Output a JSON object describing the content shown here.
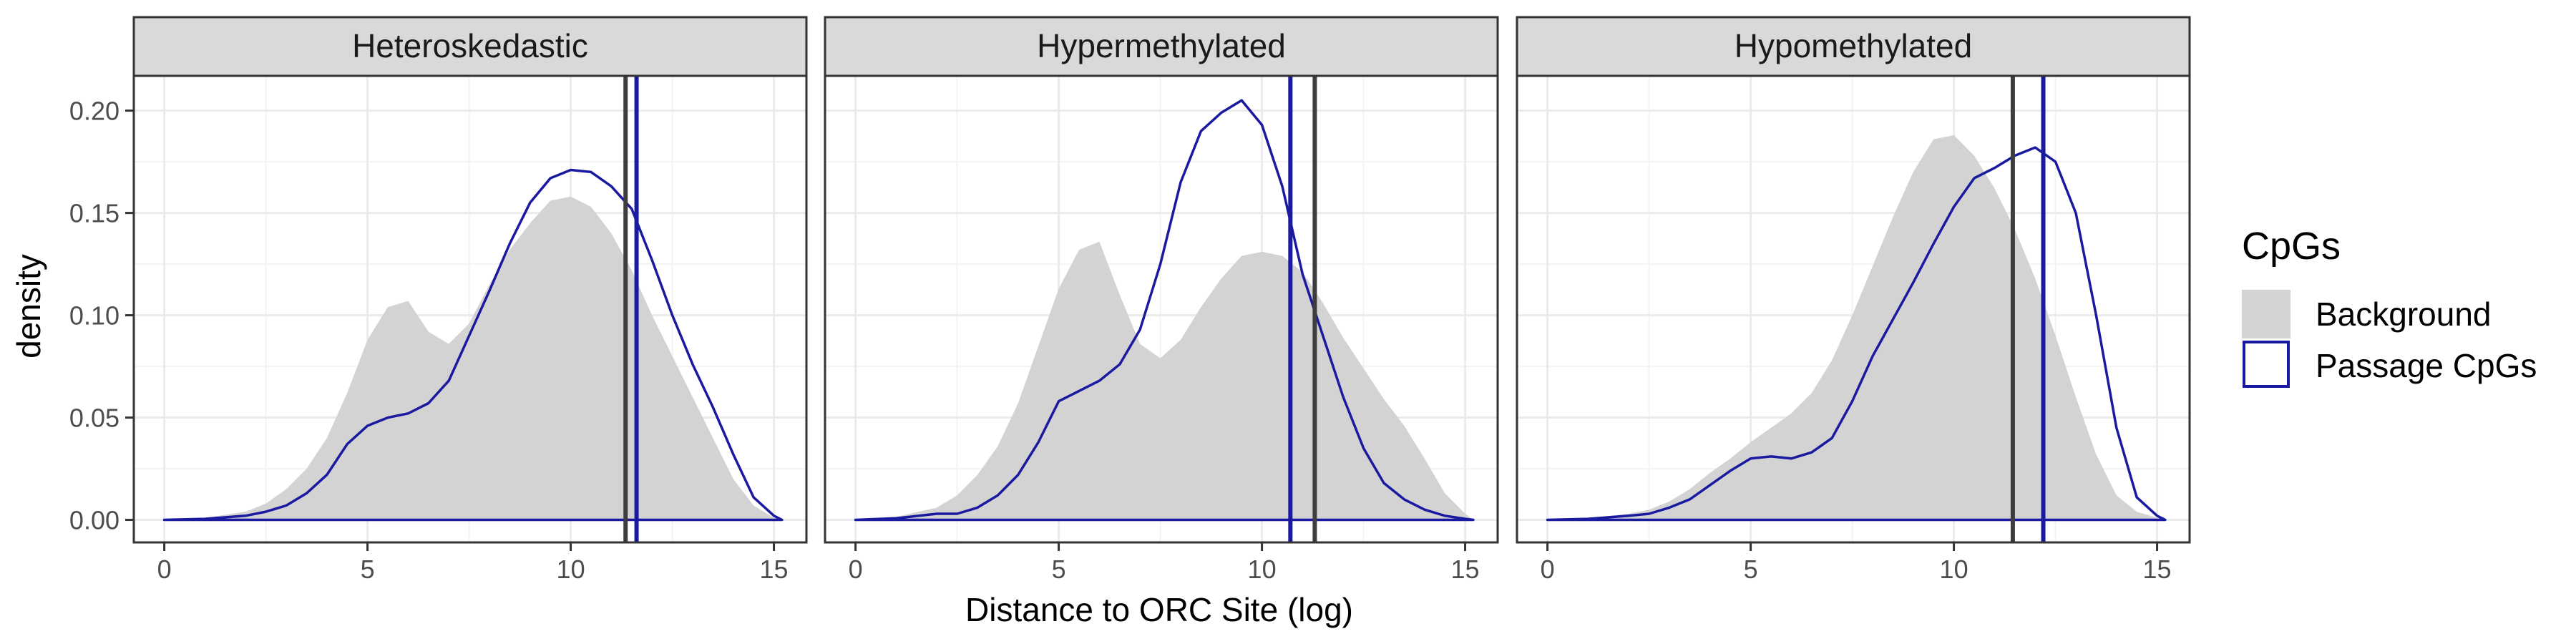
{
  "chart_data": {
    "type": "area",
    "xlabel": "Distance to ORC Site (log)",
    "ylabel": "density",
    "xlim": [
      -0.75,
      15.8
    ],
    "ylim": [
      -0.011,
      0.217
    ],
    "x_ticks": [
      0,
      5,
      10,
      15
    ],
    "x_tick_labels": [
      "0",
      "5",
      "10",
      "15"
    ],
    "y_ticks": [
      0.0,
      0.05,
      0.1,
      0.15,
      0.2
    ],
    "y_tick_labels": [
      "0.00",
      "0.05",
      "0.10",
      "0.15",
      "0.20"
    ],
    "grid": true,
    "legend": {
      "title": "CpGs",
      "position": "right",
      "entries": [
        {
          "label": "Background",
          "fill": "#d3d3d3",
          "stroke": "none"
        },
        {
          "label": "Passage CpGs",
          "fill": "none",
          "stroke": "#1a1aa0"
        }
      ]
    },
    "colors": {
      "background_fill": "#d3d3d3",
      "passage_line": "#1a1aa0",
      "background_mean": "#3d3d3d",
      "strip": "#d9d9d9"
    },
    "panels": [
      {
        "title": "Heteroskedastic",
        "background_mean": 11.35,
        "passage_mean": 11.62,
        "background_series": {
          "name": "Background",
          "x": [
            0,
            1,
            2,
            2.5,
            3,
            3.5,
            4,
            4.5,
            5,
            5.5,
            6,
            6.5,
            7,
            7.5,
            8,
            8.5,
            9,
            9.5,
            10,
            10.5,
            11,
            11.5,
            12,
            12.5,
            13,
            13.5,
            14,
            14.5,
            15,
            15.2
          ],
          "y": [
            0.0,
            0.001,
            0.004,
            0.008,
            0.015,
            0.025,
            0.04,
            0.062,
            0.088,
            0.104,
            0.107,
            0.092,
            0.086,
            0.096,
            0.115,
            0.132,
            0.145,
            0.156,
            0.158,
            0.153,
            0.14,
            0.122,
            0.1,
            0.08,
            0.06,
            0.04,
            0.02,
            0.007,
            0.001,
            0.0
          ]
        },
        "passage_series": {
          "name": "Passage CpGs",
          "x": [
            0,
            1,
            2,
            2.5,
            3,
            3.5,
            4,
            4.5,
            5,
            5.5,
            6,
            6.5,
            7,
            7.5,
            8,
            8.5,
            9,
            9.5,
            10,
            10.5,
            11,
            11.5,
            12,
            12.5,
            13,
            13.5,
            14,
            14.5,
            15,
            15.2
          ],
          "y": [
            0.0,
            0.0005,
            0.002,
            0.004,
            0.007,
            0.013,
            0.022,
            0.037,
            0.046,
            0.05,
            0.052,
            0.057,
            0.068,
            0.09,
            0.112,
            0.135,
            0.155,
            0.167,
            0.171,
            0.17,
            0.163,
            0.152,
            0.127,
            0.1,
            0.076,
            0.055,
            0.032,
            0.011,
            0.002,
            0.0
          ]
        }
      },
      {
        "title": "Hypermethylated",
        "background_mean": 11.3,
        "passage_mean": 10.7,
        "background_series": {
          "name": "Background",
          "x": [
            0,
            1,
            2,
            2.5,
            3,
            3.5,
            4,
            4.5,
            5,
            5.5,
            6,
            6.5,
            7,
            7.5,
            8,
            8.5,
            9,
            9.5,
            10,
            10.5,
            11,
            11.5,
            12,
            12.5,
            13,
            13.5,
            14,
            14.5,
            15,
            15.2
          ],
          "y": [
            0.0,
            0.0015,
            0.006,
            0.012,
            0.022,
            0.036,
            0.057,
            0.085,
            0.113,
            0.132,
            0.136,
            0.11,
            0.086,
            0.079,
            0.088,
            0.104,
            0.118,
            0.129,
            0.131,
            0.129,
            0.121,
            0.106,
            0.089,
            0.074,
            0.059,
            0.046,
            0.03,
            0.013,
            0.003,
            0.0
          ]
        },
        "passage_series": {
          "name": "Passage CpGs",
          "x": [
            0,
            1,
            2,
            2.5,
            3,
            3.5,
            4,
            4.5,
            5,
            5.5,
            6,
            6.5,
            7,
            7.5,
            8,
            8.5,
            9,
            9.5,
            10,
            10.5,
            11,
            11.5,
            12,
            12.5,
            13,
            13.5,
            14,
            14.5,
            15,
            15.2
          ],
          "y": [
            0.0,
            0.0008,
            0.003,
            0.003,
            0.006,
            0.012,
            0.022,
            0.038,
            0.058,
            0.063,
            0.068,
            0.076,
            0.093,
            0.125,
            0.165,
            0.19,
            0.199,
            0.205,
            0.193,
            0.163,
            0.12,
            0.09,
            0.06,
            0.035,
            0.018,
            0.01,
            0.005,
            0.002,
            0.0005,
            0.0
          ]
        }
      },
      {
        "title": "Hypomethylated",
        "background_mean": 11.45,
        "passage_mean": 12.2,
        "background_series": {
          "name": "Background",
          "x": [
            0,
            1,
            2,
            2.5,
            3,
            3.5,
            4,
            4.5,
            5,
            5.5,
            6,
            6.5,
            7,
            7.5,
            8,
            8.5,
            9,
            9.5,
            10,
            10.5,
            11,
            11.5,
            12,
            12.5,
            13,
            13.5,
            14,
            14.5,
            15,
            15.2
          ],
          "y": [
            0.0,
            0.0008,
            0.003,
            0.005,
            0.009,
            0.015,
            0.023,
            0.03,
            0.038,
            0.045,
            0.052,
            0.062,
            0.078,
            0.1,
            0.124,
            0.148,
            0.17,
            0.186,
            0.188,
            0.178,
            0.162,
            0.142,
            0.118,
            0.09,
            0.06,
            0.032,
            0.012,
            0.004,
            0.001,
            0.0
          ]
        },
        "passage_series": {
          "name": "Passage CpGs",
          "x": [
            0,
            1,
            2,
            2.5,
            3,
            3.5,
            4,
            4.5,
            5,
            5.5,
            6,
            6.5,
            7,
            7.5,
            8,
            8.5,
            9,
            9.5,
            10,
            10.5,
            11,
            11.5,
            12,
            12.5,
            13,
            13.5,
            14,
            14.5,
            15,
            15.2
          ],
          "y": [
            0.0,
            0.0005,
            0.002,
            0.003,
            0.006,
            0.01,
            0.017,
            0.024,
            0.03,
            0.031,
            0.03,
            0.033,
            0.04,
            0.058,
            0.08,
            0.098,
            0.116,
            0.135,
            0.153,
            0.167,
            0.172,
            0.178,
            0.182,
            0.175,
            0.15,
            0.1,
            0.045,
            0.011,
            0.002,
            0.0
          ]
        }
      }
    ]
  }
}
